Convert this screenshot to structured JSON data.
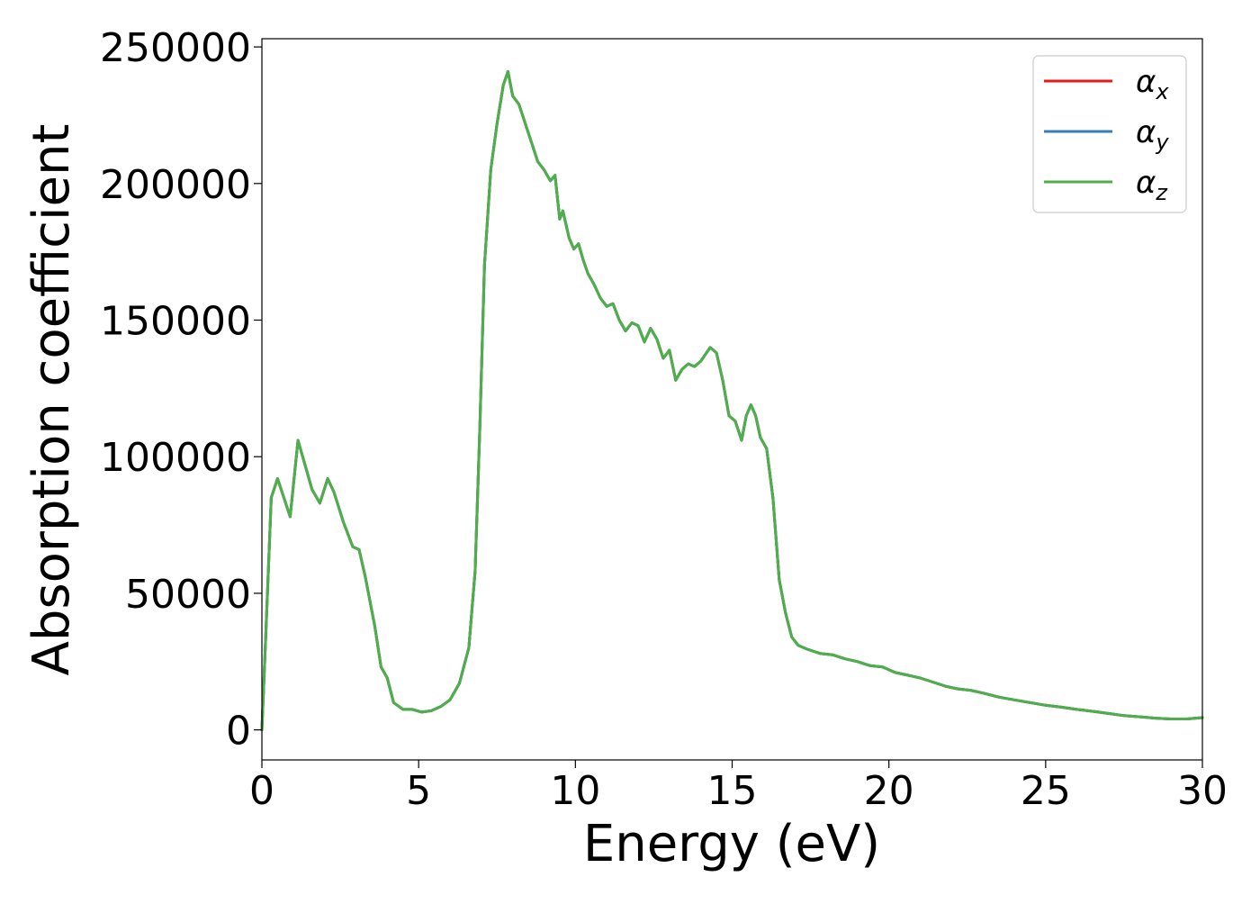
{
  "chart_data": {
    "type": "line",
    "title": "",
    "xlabel": "Energy (eV)",
    "ylabel": "Absorption coefficient",
    "xlim": [
      0,
      30
    ],
    "ylim": [
      -11000,
      253000
    ],
    "grid": false,
    "legend_position": "top-right",
    "x_ticks": [
      0,
      5,
      10,
      15,
      20,
      25,
      30
    ],
    "x_tick_labels": [
      "0",
      "5",
      "10",
      "15",
      "20",
      "25",
      "30"
    ],
    "y_ticks": [
      0,
      50000,
      100000,
      150000,
      200000,
      250000
    ],
    "y_tick_labels": [
      "0",
      "50000",
      "100000",
      "150000",
      "200000",
      "250000"
    ],
    "series": [
      {
        "name": "αx",
        "name_base": "α",
        "name_sub": "x",
        "color": "#e41a1c",
        "x": [
          0,
          0.1,
          0.3,
          0.5,
          0.7,
          0.9,
          1.15,
          1.4,
          1.6,
          1.85,
          2.1,
          2.3,
          2.6,
          2.9,
          3.1,
          3.3,
          3.6,
          3.8,
          4.0,
          4.2,
          4.5,
          4.8,
          5.1,
          5.4,
          5.7,
          6.0,
          6.3,
          6.6,
          6.8,
          6.95,
          7.1,
          7.3,
          7.5,
          7.7,
          7.85,
          8.0,
          8.2,
          8.4,
          8.6,
          8.8,
          9.0,
          9.2,
          9.35,
          9.5,
          9.6,
          9.8,
          9.95,
          10.1,
          10.25,
          10.4,
          10.6,
          10.8,
          11.0,
          11.2,
          11.4,
          11.6,
          11.8,
          12.0,
          12.2,
          12.4,
          12.6,
          12.8,
          13.0,
          13.2,
          13.4,
          13.6,
          13.8,
          14.0,
          14.3,
          14.5,
          14.7,
          14.9,
          15.1,
          15.3,
          15.45,
          15.6,
          15.75,
          15.9,
          16.1,
          16.3,
          16.5,
          16.7,
          16.9,
          17.1,
          17.4,
          17.8,
          18.2,
          18.6,
          19.0,
          19.4,
          19.8,
          20.2,
          20.6,
          21.0,
          21.4,
          21.8,
          22.2,
          22.6,
          23.0,
          23.5,
          24.0,
          24.5,
          25.0,
          25.5,
          26.0,
          26.5,
          27.0,
          27.5,
          28.0,
          28.5,
          29.0,
          29.5,
          30.0
        ],
        "values": [
          0,
          28000,
          85000,
          92000,
          85000,
          78000,
          106000,
          96000,
          88000,
          83000,
          92000,
          87000,
          76000,
          67000,
          66000,
          56000,
          38000,
          23000,
          19000,
          10000,
          7500,
          7500,
          6500,
          7000,
          8500,
          11000,
          17000,
          30000,
          58000,
          110000,
          170000,
          205000,
          222000,
          236000,
          241000,
          232000,
          229000,
          222000,
          215000,
          208000,
          205000,
          201000,
          203000,
          187000,
          190000,
          180000,
          176000,
          178000,
          172000,
          167000,
          163000,
          158000,
          155000,
          156000,
          150000,
          146000,
          149000,
          148000,
          142000,
          147000,
          143000,
          136000,
          139000,
          128000,
          132000,
          134000,
          133000,
          135000,
          140000,
          138000,
          128000,
          115000,
          113000,
          106000,
          115000,
          119000,
          115000,
          107000,
          103000,
          85000,
          55000,
          43000,
          34000,
          31000,
          29500,
          28000,
          27500,
          26000,
          25000,
          23500,
          23000,
          21000,
          20000,
          19000,
          17500,
          16000,
          15000,
          14500,
          13500,
          12000,
          11000,
          10000,
          9000,
          8300,
          7500,
          6800,
          6000,
          5200,
          4800,
          4300,
          4000,
          4000,
          4500
        ]
      },
      {
        "name": "αy",
        "name_base": "α",
        "name_sub": "y",
        "color": "#377eb8",
        "x": [
          0,
          0.1,
          0.3,
          0.5,
          0.7,
          0.9,
          1.15,
          1.4,
          1.6,
          1.85,
          2.1,
          2.3,
          2.6,
          2.9,
          3.1,
          3.3,
          3.6,
          3.8,
          4.0,
          4.2,
          4.5,
          4.8,
          5.1,
          5.4,
          5.7,
          6.0,
          6.3,
          6.6,
          6.8,
          6.95,
          7.1,
          7.3,
          7.5,
          7.7,
          7.85,
          8.0,
          8.2,
          8.4,
          8.6,
          8.8,
          9.0,
          9.2,
          9.35,
          9.5,
          9.6,
          9.8,
          9.95,
          10.1,
          10.25,
          10.4,
          10.6,
          10.8,
          11.0,
          11.2,
          11.4,
          11.6,
          11.8,
          12.0,
          12.2,
          12.4,
          12.6,
          12.8,
          13.0,
          13.2,
          13.4,
          13.6,
          13.8,
          14.0,
          14.3,
          14.5,
          14.7,
          14.9,
          15.1,
          15.3,
          15.45,
          15.6,
          15.75,
          15.9,
          16.1,
          16.3,
          16.5,
          16.7,
          16.9,
          17.1,
          17.4,
          17.8,
          18.2,
          18.6,
          19.0,
          19.4,
          19.8,
          20.2,
          20.6,
          21.0,
          21.4,
          21.8,
          22.2,
          22.6,
          23.0,
          23.5,
          24.0,
          24.5,
          25.0,
          25.5,
          26.0,
          26.5,
          27.0,
          27.5,
          28.0,
          28.5,
          29.0,
          29.5,
          30.0
        ],
        "values": [
          0,
          28000,
          85000,
          92000,
          85000,
          78000,
          106000,
          96000,
          88000,
          83000,
          92000,
          87000,
          76000,
          67000,
          66000,
          56000,
          38000,
          23000,
          19000,
          10000,
          7500,
          7500,
          6500,
          7000,
          8500,
          11000,
          17000,
          30000,
          58000,
          110000,
          170000,
          205000,
          222000,
          236000,
          241000,
          232000,
          229000,
          222000,
          215000,
          208000,
          205000,
          201000,
          203000,
          187000,
          190000,
          180000,
          176000,
          178000,
          172000,
          167000,
          163000,
          158000,
          155000,
          156000,
          150000,
          146000,
          149000,
          148000,
          142000,
          147000,
          143000,
          136000,
          139000,
          128000,
          132000,
          134000,
          133000,
          135000,
          140000,
          138000,
          128000,
          115000,
          113000,
          106000,
          115000,
          119000,
          115000,
          107000,
          103000,
          85000,
          55000,
          43000,
          34000,
          31000,
          29500,
          28000,
          27500,
          26000,
          25000,
          23500,
          23000,
          21000,
          20000,
          19000,
          17500,
          16000,
          15000,
          14500,
          13500,
          12000,
          11000,
          10000,
          9000,
          8300,
          7500,
          6800,
          6000,
          5200,
          4800,
          4300,
          4000,
          4000,
          4500
        ]
      },
      {
        "name": "αz",
        "name_base": "α",
        "name_sub": "z",
        "color": "#4daf4a",
        "x": [
          0,
          0.1,
          0.3,
          0.5,
          0.7,
          0.9,
          1.15,
          1.4,
          1.6,
          1.85,
          2.1,
          2.3,
          2.6,
          2.9,
          3.1,
          3.3,
          3.6,
          3.8,
          4.0,
          4.2,
          4.5,
          4.8,
          5.1,
          5.4,
          5.7,
          6.0,
          6.3,
          6.6,
          6.8,
          6.95,
          7.1,
          7.3,
          7.5,
          7.7,
          7.85,
          8.0,
          8.2,
          8.4,
          8.6,
          8.8,
          9.0,
          9.2,
          9.35,
          9.5,
          9.6,
          9.8,
          9.95,
          10.1,
          10.25,
          10.4,
          10.6,
          10.8,
          11.0,
          11.2,
          11.4,
          11.6,
          11.8,
          12.0,
          12.2,
          12.4,
          12.6,
          12.8,
          13.0,
          13.2,
          13.4,
          13.6,
          13.8,
          14.0,
          14.3,
          14.5,
          14.7,
          14.9,
          15.1,
          15.3,
          15.45,
          15.6,
          15.75,
          15.9,
          16.1,
          16.3,
          16.5,
          16.7,
          16.9,
          17.1,
          17.4,
          17.8,
          18.2,
          18.6,
          19.0,
          19.4,
          19.8,
          20.2,
          20.6,
          21.0,
          21.4,
          21.8,
          22.2,
          22.6,
          23.0,
          23.5,
          24.0,
          24.5,
          25.0,
          25.5,
          26.0,
          26.5,
          27.0,
          27.5,
          28.0,
          28.5,
          29.0,
          29.5,
          30.0
        ],
        "values": [
          0,
          28000,
          85000,
          92000,
          85000,
          78000,
          106000,
          96000,
          88000,
          83000,
          92000,
          87000,
          76000,
          67000,
          66000,
          56000,
          38000,
          23000,
          19000,
          10000,
          7500,
          7500,
          6500,
          7000,
          8500,
          11000,
          17000,
          30000,
          58000,
          110000,
          170000,
          205000,
          222000,
          236000,
          241000,
          232000,
          229000,
          222000,
          215000,
          208000,
          205000,
          201000,
          203000,
          187000,
          190000,
          180000,
          176000,
          178000,
          172000,
          167000,
          163000,
          158000,
          155000,
          156000,
          150000,
          146000,
          149000,
          148000,
          142000,
          147000,
          143000,
          136000,
          139000,
          128000,
          132000,
          134000,
          133000,
          135000,
          140000,
          138000,
          128000,
          115000,
          113000,
          106000,
          115000,
          119000,
          115000,
          107000,
          103000,
          85000,
          55000,
          43000,
          34000,
          31000,
          29500,
          28000,
          27500,
          26000,
          25000,
          23500,
          23000,
          21000,
          20000,
          19000,
          17500,
          16000,
          15000,
          14500,
          13500,
          12000,
          11000,
          10000,
          9000,
          8300,
          7500,
          6800,
          6000,
          5200,
          4800,
          4300,
          4000,
          4000,
          4500
        ]
      }
    ]
  }
}
